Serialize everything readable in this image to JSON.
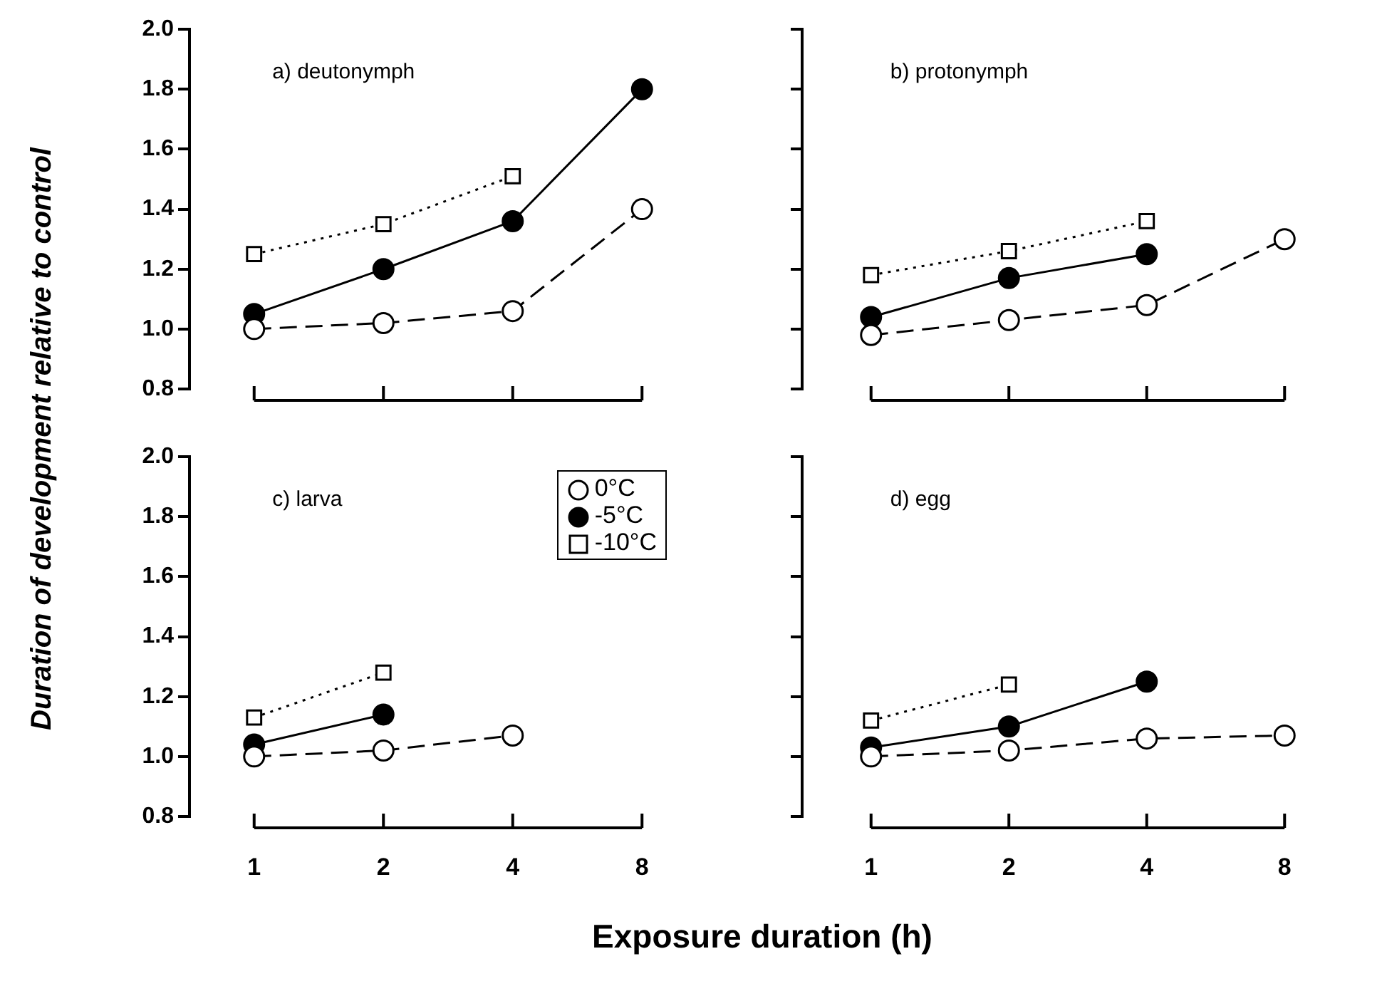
{
  "chart_data": [
    {
      "type": "line",
      "ylabel": "Duration of development relative to control",
      "categories": [
        "1",
        "2",
        "4",
        "8"
      ],
      "ylim": [
        0.8,
        2.0
      ],
      "yticks": [
        0.8,
        {
          "value": 1.0,
          "label": "1.0"
        },
        1.2,
        1.4,
        1.6,
        1.8,
        {
          "value": 2.0,
          "label": "2.0"
        }
      ],
      "tick_labels": "y",
      "grid": false,
      "annotations": [
        "a) deutonymph"
      ],
      "series": [
        {
          "color": "#000000",
          "marker": "circle",
          "line_style": "dashed",
          "values": [
            1.0,
            1.02,
            1.06,
            1.4
          ]
        },
        {
          "color": "#000000",
          "marker": "circle",
          "line_style": "solid",
          "values": [
            1.05,
            1.2,
            1.36,
            1.8
          ]
        },
        {
          "color": "#000000",
          "marker": "square",
          "line_style": "dotted",
          "values": [
            1.25,
            1.35,
            1.51,
            null
          ]
        }
      ]
    },
    {
      "type": "line",
      "categories": [
        "1",
        "2",
        "4",
        "8"
      ],
      "ylim": [
        0.8,
        2.0
      ],
      "yticks": [
        {
          "value": 0.8,
          "label": null
        },
        {
          "value": 1.0,
          "label": null
        },
        {
          "value": 1.2,
          "label": null
        },
        {
          "value": 1.4,
          "label": null
        },
        {
          "value": 1.6,
          "label": null
        },
        {
          "value": 1.8,
          "label": null
        },
        {
          "value": 2.0,
          "label": null
        }
      ],
      "tick_labels": false,
      "grid": false,
      "annotations": [
        "b) protonymph"
      ],
      "series": [
        {
          "color": "#000000",
          "marker": "circle",
          "line_style": "dashed",
          "values": [
            0.98,
            1.03,
            1.08,
            1.3
          ]
        },
        {
          "color": "#000000",
          "marker": "circle",
          "line_style": "solid",
          "values": [
            1.04,
            1.17,
            1.25,
            null
          ]
        },
        {
          "color": "#000000",
          "marker": "square",
          "line_style": "dotted",
          "values": [
            1.18,
            1.26,
            1.36,
            null
          ]
        }
      ]
    },
    {
      "type": "line",
      "xlabel": "Exposure duration (h)",
      "categories": [
        "1",
        "2",
        "4",
        "8"
      ],
      "ylim": [
        0.8,
        2.0
      ],
      "yticks": [
        0.8,
        {
          "value": 1.0,
          "label": "1.0"
        },
        1.2,
        1.4,
        1.6,
        1.8,
        {
          "value": 2.0,
          "label": "2.0"
        }
      ],
      "grid": false,
      "legend": "top right",
      "annotations": [
        "c) larva"
      ],
      "series": [
        {
          "name": "0°C",
          "color": "#000000",
          "marker": "circle",
          "line_style": "dashed",
          "values": [
            1.0,
            1.02,
            1.07,
            null
          ]
        },
        {
          "name": "-5°C",
          "color": "#000000",
          "marker": "circle",
          "line_style": "solid",
          "values": [
            1.04,
            1.14,
            null,
            null
          ]
        },
        {
          "name": "-10°C",
          "color": "#000000",
          "marker": "square",
          "line_style": "dotted",
          "values": [
            1.13,
            1.28,
            null,
            null
          ]
        }
      ]
    },
    {
      "type": "line",
      "categories": [
        "1",
        "2",
        "4",
        "8"
      ],
      "ylim": [
        0.8,
        2.0
      ],
      "yticks": [
        {
          "value": 0.8,
          "label": null
        },
        {
          "value": 1.0,
          "label": null
        },
        {
          "value": 1.2,
          "label": null
        },
        {
          "value": 1.4,
          "label": null
        },
        {
          "value": 1.6,
          "label": null
        },
        {
          "value": 1.8,
          "label": null
        },
        {
          "value": 2.0,
          "label": null
        }
      ],
      "tick_labels": "x",
      "grid": false,
      "annotations": [
        "d) egg"
      ],
      "series": [
        {
          "color": "#000000",
          "marker": "circle",
          "line_style": "dashed",
          "values": [
            1.0,
            1.02,
            1.06,
            1.07
          ]
        },
        {
          "color": "#000000",
          "marker": "circle",
          "line_style": "solid",
          "values": [
            1.03,
            1.1,
            1.25,
            null
          ]
        },
        {
          "color": "#000000",
          "marker": "square",
          "line_style": "dotted",
          "values": [
            1.12,
            1.24,
            null,
            null
          ]
        }
      ]
    }
  ]
}
